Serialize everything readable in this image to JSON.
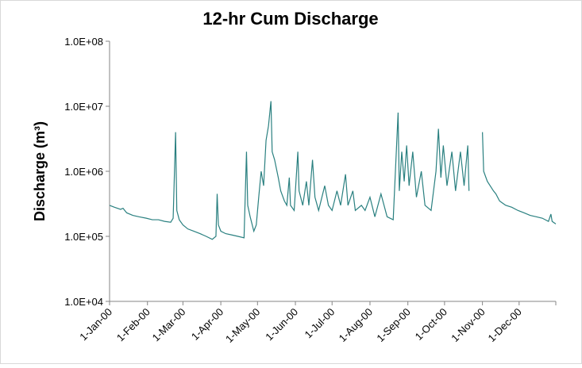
{
  "chart_data": {
    "type": "line",
    "title": "12-hr Cum Discharge",
    "y_label": "Discharge (m³)",
    "log_scale": true,
    "grid": false,
    "color": "#2a8080",
    "xlim": [
      "1-Jan-00",
      "31-Dec-00"
    ],
    "xticks": [
      "1-Jan-00",
      "1-Feb-00",
      "1-Mar-00",
      "1-Apr-00",
      "1-May-00",
      "1-Jun-00",
      "1-Jul-00",
      "1-Aug-00",
      "1-Sep-00",
      "1-Oct-00",
      "1-Nov-00",
      "1-Dec-00"
    ],
    "ylim": [
      10000,
      100000000
    ],
    "yticks": [
      {
        "value": 10000,
        "label": "1.0E+04"
      },
      {
        "value": 100000,
        "label": "1.0E+05"
      },
      {
        "value": 1000000,
        "label": "1.0E+06"
      },
      {
        "value": 10000000,
        "label": "1.0E+07"
      },
      {
        "value": 100000000,
        "label": "1.0E+08"
      }
    ],
    "x": [
      "1-Jan-00",
      "5-Jan-00",
      "10-Jan-00",
      "12-Jan-00",
      "15-Jan-00",
      "20-Jan-00",
      "25-Jan-00",
      "31-Jan-00",
      "5-Feb-00",
      "10-Feb-00",
      "15-Feb-00",
      "20-Feb-00",
      "22-Feb-00",
      "24-Feb-00",
      "25-Feb-00",
      "27-Feb-00",
      "1-Mar-00",
      "5-Mar-00",
      "10-Mar-00",
      "15-Mar-00",
      "20-Mar-00",
      "25-Mar-00",
      "28-Mar-00",
      "29-Mar-00",
      "30-Mar-00",
      "1-Apr-00",
      "5-Apr-00",
      "10-Apr-00",
      "15-Apr-00",
      "20-Apr-00",
      "22-Apr-00",
      "23-Apr-00",
      "25-Apr-00",
      "28-Apr-00",
      "30-Apr-00",
      "2-May-00",
      "4-May-00",
      "6-May-00",
      "8-May-00",
      "10-May-00",
      "12-May-00",
      "13-May-00",
      "15-May-00",
      "18-May-00",
      "20-May-00",
      "23-May-00",
      "25-May-00",
      "27-May-00",
      "28-May-00",
      "31-May-00",
      "3-Jun-00",
      "4-Jun-00",
      "7-Jun-00",
      "10-Jun-00",
      "12-Jun-00",
      "15-Jun-00",
      "17-Jun-00",
      "20-Jun-00",
      "25-Jun-00",
      "28-Jun-00",
      "1-Jul-00",
      "5-Jul-00",
      "8-Jul-00",
      "12-Jul-00",
      "14-Jul-00",
      "18-Jul-00",
      "20-Jul-00",
      "25-Jul-00",
      "28-Jul-00",
      "1-Aug-00",
      "5-Aug-00",
      "10-Aug-00",
      "15-Aug-00",
      "20-Aug-00",
      "24-Aug-00",
      "25-Aug-00",
      "27-Aug-00",
      "29-Aug-00",
      "31-Aug-00",
      "2-Sep-00",
      "5-Sep-00",
      "8-Sep-00",
      "12-Sep-00",
      "15-Sep-00",
      "20-Sep-00",
      "24-Sep-00",
      "26-Sep-00",
      "28-Sep-00",
      "30-Sep-00",
      "3-Oct-00",
      "7-Oct-00",
      "10-Oct-00",
      "14-Oct-00",
      "17-Oct-00",
      "20-Oct-00",
      "21-Oct-00",
      "25-Oct-00",
      "1-Nov-00",
      "2-Nov-00",
      "5-Nov-00",
      "10-Nov-00",
      "12-Nov-00",
      "15-Nov-00",
      "20-Nov-00",
      "25-Nov-00",
      "30-Nov-00",
      "5-Dec-00",
      "10-Dec-00",
      "15-Dec-00",
      "20-Dec-00",
      "25-Dec-00",
      "27-Dec-00",
      "28-Dec-00",
      "31-Dec-00"
    ],
    "values": [
      300000,
      280000,
      260000,
      270000,
      230000,
      210000,
      200000,
      190000,
      180000,
      180000,
      170000,
      165000,
      190000,
      4000000,
      250000,
      180000,
      150000,
      130000,
      120000,
      110000,
      100000,
      90000,
      100000,
      450000,
      150000,
      120000,
      110000,
      105000,
      100000,
      95000,
      2000000,
      300000,
      200000,
      120000,
      150000,
      400000,
      1000000,
      600000,
      3000000,
      5000000,
      12000000,
      2000000,
      1500000,
      800000,
      500000,
      350000,
      300000,
      800000,
      300000,
      250000,
      2000000,
      500000,
      300000,
      700000,
      300000,
      1500000,
      400000,
      250000,
      600000,
      300000,
      250000,
      500000,
      300000,
      900000,
      300000,
      500000,
      250000,
      300000,
      250000,
      400000,
      200000,
      450000,
      200000,
      180000,
      8000000,
      500000,
      2000000,
      700000,
      2500000,
      600000,
      2000000,
      400000,
      1000000,
      300000,
      250000,
      1000000,
      4500000,
      800000,
      2500000,
      600000,
      2000000,
      500000,
      2000000,
      600000,
      2500000,
      500000,
      null,
      4000000,
      1000000,
      700000,
      500000,
      450000,
      350000,
      300000,
      280000,
      250000,
      230000,
      210000,
      200000,
      190000,
      170000,
      220000,
      170000,
      155000
    ]
  }
}
